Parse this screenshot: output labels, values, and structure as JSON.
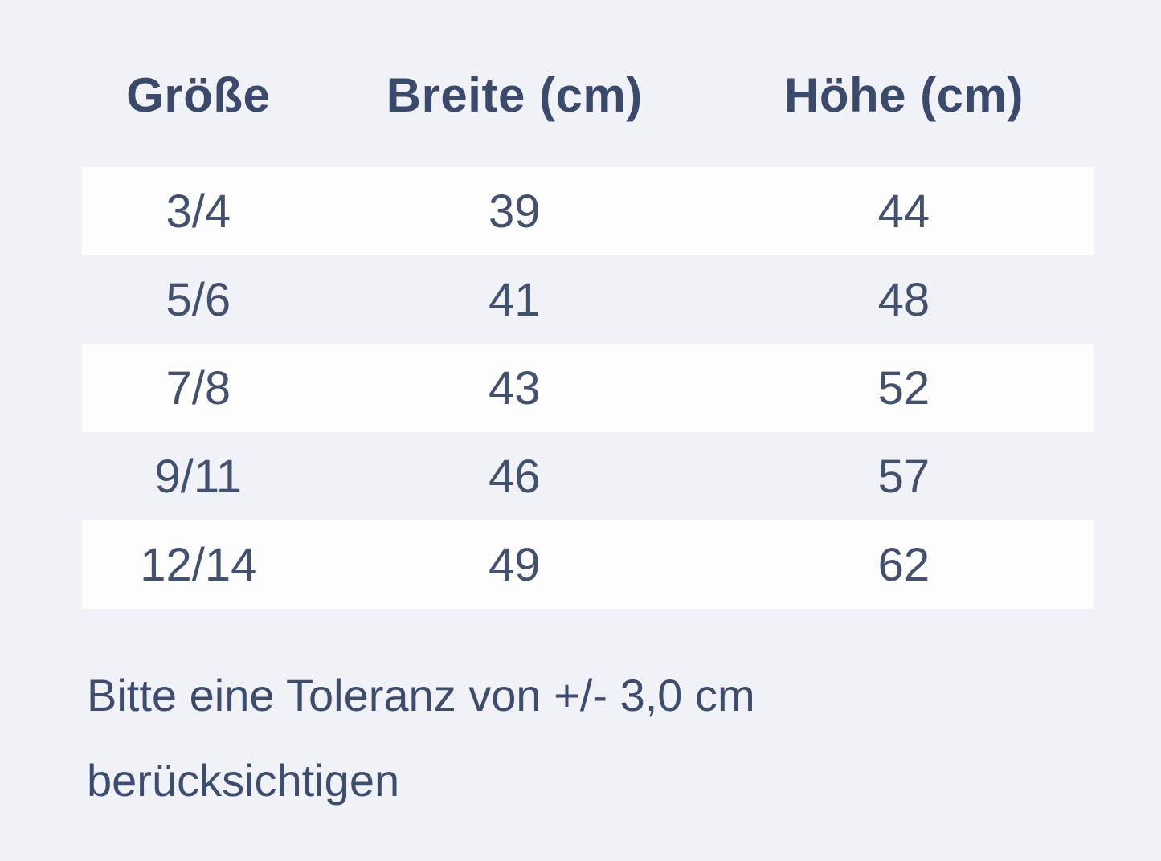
{
  "table": {
    "columns": {
      "size": "Größe",
      "width": "Breite (cm)",
      "height": "Höhe (cm)"
    },
    "rows": [
      {
        "size": "3/4",
        "width": "39",
        "height": "44"
      },
      {
        "size": "5/6",
        "width": "41",
        "height": "48"
      },
      {
        "size": "7/8",
        "width": "43",
        "height": "52"
      },
      {
        "size": "9/11",
        "width": "46",
        "height": "57"
      },
      {
        "size": "12/14",
        "width": "49",
        "height": "62"
      }
    ]
  },
  "note": "Bitte eine Toleranz von +/- 3,0 cm berücksichtigen",
  "colors": {
    "page_background": "#f0f2f8",
    "row_stripe": "#fdfdfd",
    "text": "#3e4d6e"
  }
}
